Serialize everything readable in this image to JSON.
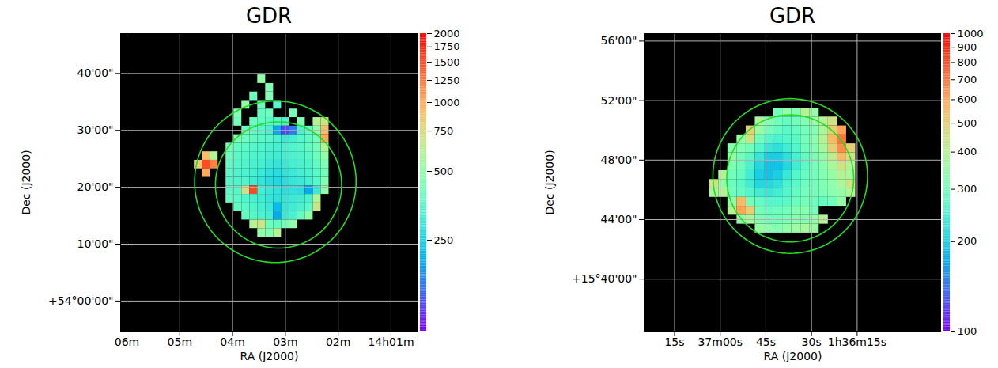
{
  "chart_data": [
    {
      "type": "heatmap",
      "title": "GDR",
      "x_label": "RA (J2000)",
      "y_label": "Dec (J2000)",
      "xlim": [
        6.12,
        0.49
      ],
      "xticks": [
        {
          "value": 6,
          "label": "06m"
        },
        {
          "value": 5,
          "label": "05m"
        },
        {
          "value": 4,
          "label": "04m"
        },
        {
          "value": 3,
          "label": "03m"
        },
        {
          "value": 2,
          "label": "02m"
        },
        {
          "value": 1,
          "label": "14h01m"
        }
      ],
      "ylim": [
        -5.3,
        47
      ],
      "yticks": [
        {
          "value": 0,
          "label": "+54°00'00\""
        },
        {
          "value": 10,
          "label": "10'00\""
        },
        {
          "value": 20,
          "label": "20'00\""
        },
        {
          "value": 30,
          "label": "30'00\""
        },
        {
          "value": 40,
          "label": "40'00\""
        }
      ],
      "grid": true,
      "colorbar": {
        "lim": [
          100,
          2000
        ],
        "ticks": [
          250,
          500,
          750,
          1000,
          1250,
          1500,
          1750,
          2000
        ],
        "log": true
      },
      "circles": [
        {
          "x": 3.19,
          "y": 20.97,
          "r": 14.2,
          "color": "#22dd22"
        },
        {
          "x": 3.13,
          "y": 20.4,
          "r": 11.1,
          "color": "#22dd22"
        }
      ],
      "cells": {
        "x": [
          4.65,
          4.5,
          4.35,
          4.2,
          4.05,
          3.9,
          3.75,
          3.6,
          3.45,
          3.3,
          3.15,
          3.0,
          2.85,
          2.7,
          2.55,
          2.4,
          2.25,
          2.1
        ],
        "y": [
          39,
          37.5,
          36,
          34.5,
          33,
          31.5,
          30,
          28.5,
          27,
          25.5,
          24,
          22.5,
          21,
          19.5,
          18,
          16.5,
          15,
          13.5,
          12
        ],
        "values": [
          [
            null,
            null,
            null,
            null,
            null,
            null,
            null,
            null,
            500,
            null,
            null,
            null,
            null,
            null,
            null,
            null,
            null,
            null
          ],
          [
            null,
            null,
            null,
            null,
            null,
            null,
            null,
            null,
            null,
            450,
            null,
            null,
            null,
            null,
            null,
            null,
            null,
            null
          ],
          [
            null,
            null,
            null,
            null,
            null,
            null,
            null,
            400,
            null,
            450,
            null,
            null,
            null,
            null,
            null,
            null,
            null,
            null
          ],
          [
            null,
            null,
            null,
            null,
            null,
            null,
            500,
            null,
            400,
            null,
            350,
            null,
            null,
            null,
            null,
            null,
            null,
            null
          ],
          [
            null,
            null,
            null,
            null,
            null,
            450,
            null,
            null,
            380,
            400,
            null,
            null,
            420,
            null,
            null,
            null,
            null,
            null
          ],
          [
            null,
            null,
            null,
            null,
            null,
            420,
            null,
            400,
            380,
            360,
            350,
            330,
            null,
            450,
            null,
            600,
            700,
            null
          ],
          [
            null,
            null,
            null,
            null,
            null,
            null,
            400,
            380,
            350,
            330,
            200,
            130,
            160,
            330,
            380,
            500,
            900,
            null
          ],
          [
            null,
            null,
            null,
            null,
            null,
            450,
            400,
            380,
            360,
            350,
            330,
            300,
            320,
            350,
            370,
            420,
            1000,
            null
          ],
          [
            null,
            null,
            null,
            null,
            420,
            380,
            360,
            350,
            340,
            330,
            320,
            330,
            340,
            350,
            380,
            420,
            600,
            null
          ],
          [
            null,
            900,
            600,
            null,
            400,
            360,
            350,
            340,
            330,
            320,
            310,
            320,
            330,
            340,
            360,
            400,
            500,
            null
          ],
          [
            800,
            1500,
            1200,
            null,
            380,
            350,
            340,
            330,
            320,
            300,
            290,
            300,
            320,
            330,
            340,
            380,
            450,
            null
          ],
          [
            null,
            1000,
            null,
            null,
            360,
            340,
            330,
            320,
            300,
            280,
            270,
            280,
            300,
            320,
            330,
            360,
            420,
            null
          ],
          [
            null,
            null,
            null,
            null,
            350,
            340,
            340,
            310,
            290,
            270,
            260,
            270,
            290,
            300,
            320,
            350,
            450,
            null
          ],
          [
            null,
            null,
            null,
            null,
            360,
            350,
            700,
            1500,
            320,
            300,
            280,
            270,
            280,
            270,
            200,
            300,
            500,
            null
          ],
          [
            null,
            null,
            null,
            null,
            380,
            360,
            340,
            330,
            310,
            290,
            280,
            290,
            300,
            310,
            330,
            600,
            null,
            null
          ],
          [
            null,
            null,
            null,
            null,
            null,
            380,
            360,
            340,
            320,
            300,
            220,
            290,
            310,
            330,
            360,
            700,
            null,
            null
          ],
          [
            null,
            null,
            null,
            null,
            null,
            null,
            380,
            350,
            330,
            320,
            200,
            300,
            330,
            380,
            500,
            null,
            null,
            null
          ],
          [
            null,
            null,
            null,
            null,
            null,
            null,
            null,
            600,
            700,
            400,
            380,
            420,
            500,
            null,
            null,
            null,
            null,
            null
          ],
          [
            null,
            null,
            null,
            null,
            null,
            null,
            null,
            null,
            500,
            450,
            600,
            null,
            null,
            null,
            null,
            null,
            null,
            null
          ]
        ]
      }
    },
    {
      "type": "heatmap",
      "title": "GDR",
      "x_label": "RA (J2000)",
      "y_label": "Dec (J2000)",
      "xlim": [
        85,
        -12.7
      ],
      "xticks": [
        {
          "value": 75,
          "label": "15s"
        },
        {
          "value": 60,
          "label": "37m00s"
        },
        {
          "value": 45,
          "label": "45s"
        },
        {
          "value": 30,
          "label": "30s"
        },
        {
          "value": 15,
          "label": "1h36m15s"
        }
      ],
      "ylim": [
        36.5,
        56.5
      ],
      "yticks": [
        {
          "value": 40,
          "label": "+15°40'00\""
        },
        {
          "value": 44,
          "label": "44'00\""
        },
        {
          "value": 48,
          "label": "48'00\""
        },
        {
          "value": 52,
          "label": "52'00\""
        },
        {
          "value": 56,
          "label": "56'00\""
        }
      ],
      "grid": true,
      "colorbar": {
        "lim": [
          100,
          1000
        ],
        "ticks": [
          100,
          200,
          300,
          400,
          500,
          600,
          700,
          800,
          900,
          1000
        ],
        "log": true
      },
      "circles": [
        {
          "x": 37.0,
          "y": 46.93,
          "r": 5.2,
          "color": "#22dd22"
        },
        {
          "x": 37.0,
          "y": 46.77,
          "r": 4.27,
          "color": "#22dd22"
        }
      ],
      "cells": {
        "x": [
          62,
          59,
          56,
          53,
          50,
          47,
          44,
          41,
          38,
          35,
          32,
          29,
          26,
          23,
          20,
          17
        ],
        "y": [
          51.2,
          50.6,
          50.0,
          49.4,
          48.8,
          48.2,
          47.6,
          47.0,
          46.4,
          45.8,
          45.2,
          44.6,
          44.0,
          43.4
        ],
        "values": [
          [
            null,
            null,
            null,
            null,
            null,
            null,
            null,
            300,
            350,
            320,
            400,
            350,
            null,
            null,
            null,
            null
          ],
          [
            null,
            null,
            null,
            null,
            null,
            380,
            320,
            300,
            280,
            300,
            320,
            350,
            400,
            450,
            null,
            null
          ],
          [
            null,
            null,
            null,
            null,
            500,
            350,
            300,
            280,
            270,
            280,
            300,
            320,
            380,
            500,
            600,
            null
          ],
          [
            null,
            null,
            null,
            350,
            450,
            300,
            260,
            250,
            260,
            270,
            300,
            330,
            400,
            550,
            700,
            null
          ],
          [
            null,
            null,
            330,
            320,
            300,
            260,
            230,
            220,
            240,
            260,
            290,
            320,
            380,
            500,
            650,
            500
          ],
          [
            null,
            null,
            350,
            300,
            270,
            230,
            200,
            200,
            220,
            250,
            280,
            310,
            350,
            420,
            550,
            450
          ],
          [
            null,
            null,
            320,
            290,
            250,
            210,
            190,
            190,
            210,
            240,
            270,
            300,
            330,
            380,
            450,
            400
          ],
          [
            null,
            400,
            300,
            280,
            240,
            200,
            190,
            200,
            230,
            260,
            280,
            300,
            320,
            350,
            400,
            380
          ],
          [
            450,
            350,
            290,
            270,
            240,
            210,
            210,
            220,
            250,
            270,
            290,
            300,
            320,
            340,
            380,
            450
          ],
          [
            380,
            400,
            300,
            280,
            260,
            240,
            230,
            240,
            260,
            280,
            300,
            300,
            310,
            330,
            350,
            400
          ],
          [
            null,
            null,
            350,
            550,
            300,
            280,
            260,
            260,
            270,
            290,
            300,
            290,
            280,
            300,
            350,
            null
          ],
          [
            null,
            null,
            400,
            600,
            500,
            300,
            280,
            290,
            300,
            320,
            330,
            300,
            null,
            null,
            null,
            null
          ],
          [
            null,
            null,
            null,
            350,
            380,
            320,
            300,
            300,
            310,
            330,
            320,
            350,
            400,
            null,
            null,
            null
          ],
          [
            null,
            null,
            null,
            null,
            null,
            350,
            330,
            320,
            340,
            360,
            380,
            350,
            null,
            null,
            null,
            null
          ]
        ]
      }
    }
  ]
}
